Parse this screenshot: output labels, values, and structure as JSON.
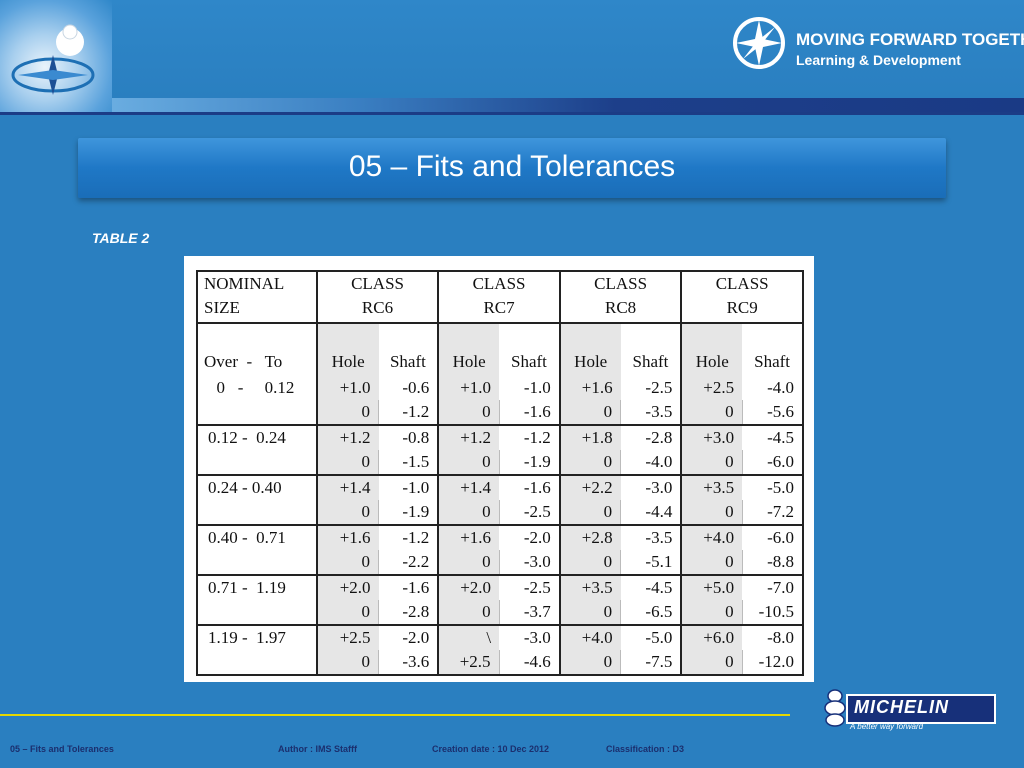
{
  "header": {
    "logo_title": "MOVING FORWARD TOGETHER",
    "logo_subtitle": "Learning & Development"
  },
  "slide": {
    "title": "05 – Fits and Tolerances",
    "caption": "TABLE 2"
  },
  "table": {
    "nominal_label_1": "NOMINAL",
    "nominal_label_2": "SIZE",
    "classes": [
      {
        "label": "CLASS",
        "code": "RC6"
      },
      {
        "label": "CLASS",
        "code": "RC7"
      },
      {
        "label": "CLASS",
        "code": "RC8"
      },
      {
        "label": "CLASS",
        "code": "RC9"
      }
    ],
    "range_label": "Over  -   To",
    "hole_label": "Hole",
    "shaft_label": "Shaft",
    "rows": [
      {
        "size": "  0   -     0.12",
        "a": [
          "+1.0",
          "-0.6",
          "+1.0",
          "-1.0",
          "+1.6",
          "-2.5",
          "+2.5",
          "-4.0"
        ],
        "b": [
          "0",
          "-1.2",
          "0",
          "-1.6",
          "0",
          "-3.5",
          "0",
          "-5.6"
        ]
      },
      {
        "size": "0.12 -  0.24",
        "a": [
          "+1.2",
          "-0.8",
          "+1.2",
          "-1.2",
          "+1.8",
          "-2.8",
          "+3.0",
          "-4.5"
        ],
        "b": [
          "0",
          "-1.5",
          "0",
          "-1.9",
          "0",
          "-4.0",
          "0",
          "-6.0"
        ]
      },
      {
        "size": "0.24 - 0.40",
        "a": [
          "+1.4",
          "-1.0",
          "+1.4",
          "-1.6",
          "+2.2",
          "-3.0",
          "+3.5",
          "-5.0"
        ],
        "b": [
          "0",
          "-1.9",
          "0",
          "-2.5",
          "0",
          "-4.4",
          "0",
          "-7.2"
        ]
      },
      {
        "size": "0.40 -  0.71",
        "a": [
          "+1.6",
          "-1.2",
          "+1.6",
          "-2.0",
          "+2.8",
          "-3.5",
          "+4.0",
          "-6.0"
        ],
        "b": [
          "0",
          "-2.2",
          "0",
          "-3.0",
          "0",
          "-5.1",
          "0",
          "-8.8"
        ]
      },
      {
        "size": "0.71 -  1.19",
        "a": [
          "+2.0",
          "-1.6",
          "+2.0",
          "-2.5",
          "+3.5",
          "-4.5",
          "+5.0",
          "-7.0"
        ],
        "b": [
          "0",
          "-2.8",
          "0",
          "-3.7",
          "0",
          "-6.5",
          "0",
          "-10.5"
        ]
      },
      {
        "size": "1.19 -  1.97",
        "a": [
          "+2.5",
          "-2.0",
          "\\",
          "-3.0",
          "+4.0",
          "-5.0",
          "+6.0",
          "-8.0"
        ],
        "b": [
          "0",
          "-3.6",
          "+2.5",
          "-4.6",
          "0",
          "-7.5",
          "0",
          "-12.0"
        ]
      }
    ]
  },
  "footer": {
    "doc": "05 – Fits and Tolerances",
    "author": "Author : IMS Stafff",
    "date": "Creation date : 10 Dec 2012",
    "classification": "Classification : D3"
  },
  "brand": {
    "name": "MICHELIN",
    "tagline": "A better way forward"
  }
}
